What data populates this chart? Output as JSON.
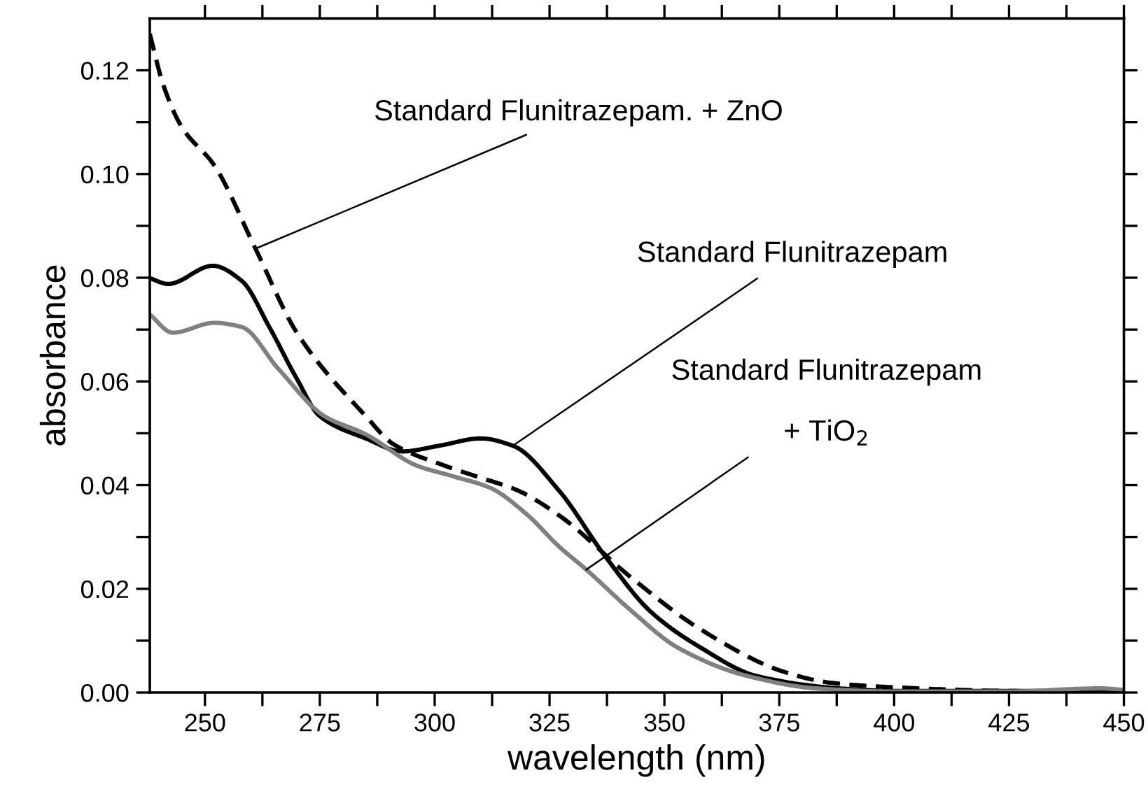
{
  "chart_data": {
    "type": "line",
    "xlabel": "wavelength (nm)",
    "ylabel": "absorbance",
    "xlim": [
      238,
      450
    ],
    "ylim": [
      0,
      0.13
    ],
    "xticks": [
      250,
      {
        "value": 262.5,
        "label": null
      },
      275,
      {
        "value": 287.5,
        "label": null
      },
      300,
      {
        "value": 312.5,
        "label": null
      },
      325,
      {
        "value": 337.5,
        "label": null
      },
      350,
      {
        "value": 362.5,
        "label": null
      },
      375,
      {
        "value": 387.5,
        "label": null
      },
      400,
      {
        "value": 412.5,
        "label": null
      },
      425,
      {
        "value": 437.5,
        "label": null
      },
      450
    ],
    "yticks": [
      {
        "value": 0,
        "label": "0.00"
      },
      {
        "value": 0.01,
        "label": null
      },
      {
        "value": 0.02,
        "label": "0.02"
      },
      {
        "value": 0.03,
        "label": null
      },
      {
        "value": 0.04,
        "label": "0.04"
      },
      {
        "value": 0.05,
        "label": null
      },
      {
        "value": 0.06,
        "label": "0.06"
      },
      {
        "value": 0.07,
        "label": null
      },
      {
        "value": 0.08,
        "label": "0.08"
      },
      {
        "value": 0.09,
        "label": null
      },
      {
        "value": 0.1,
        "label": "0.10"
      },
      {
        "value": 0.11,
        "label": null
      },
      {
        "value": 0.12,
        "label": "0.12"
      }
    ],
    "grid": false,
    "legend": false,
    "annotations": [
      {
        "text": "Standard Flunitrazepam. + ZnO",
        "x": 261,
        "y": 0.0856
      },
      {
        "text": "Standard Flunitrazepam",
        "x": 317,
        "y": 0.0476
      },
      {
        "text": "Standard Flunitrazepam\n+ TiO$_{2}$",
        "x": 333,
        "y": 0.0237
      }
    ],
    "series": [
      {
        "color": "#000000",
        "line_style": "dashed",
        "x": [
          238,
          241,
          245,
          252,
          261,
          270,
          285,
          291,
          302,
          309,
          318,
          327,
          343,
          358,
          376,
          386,
          400,
          425,
          450
        ],
        "values": [
          0.127,
          0.117,
          0.109,
          0.1017,
          0.0856,
          0.0694,
          0.0533,
          0.0479,
          0.0438,
          0.0417,
          0.039,
          0.0342,
          0.022,
          0.0121,
          0.004,
          0.0019,
          0.001,
          0.0003,
          0.0002
        ]
      },
      {
        "color": "#000000",
        "line_style": "solid",
        "x": [
          238,
          242,
          251.7,
          258,
          264,
          270,
          275,
          285,
          293,
          301,
          310,
          317,
          327,
          337,
          347,
          358,
          370,
          388,
          400,
          450
        ],
        "values": [
          0.0799,
          0.0788,
          0.0823,
          0.0794,
          0.0705,
          0.0605,
          0.0533,
          0.049,
          0.0465,
          0.0476,
          0.049,
          0.0476,
          0.039,
          0.0264,
          0.0156,
          0.0086,
          0.0032,
          0.0008,
          0.0003,
          0.0003
        ]
      },
      {
        "color": "#808080",
        "line_style": "solid",
        "x": [
          238,
          243,
          252,
          258,
          266,
          276,
          285,
          296,
          304,
          312,
          320,
          327,
          333,
          343,
          353,
          368,
          383,
          400,
          425,
          445,
          450
        ],
        "values": [
          0.0729,
          0.0694,
          0.0713,
          0.0705,
          0.0624,
          0.0533,
          0.0498,
          0.0438,
          0.0417,
          0.0395,
          0.0344,
          0.0282,
          0.0237,
          0.0156,
          0.0086,
          0.0032,
          0.0008,
          0.0002,
          0.0002,
          0.0008,
          0.0005
        ]
      }
    ]
  }
}
